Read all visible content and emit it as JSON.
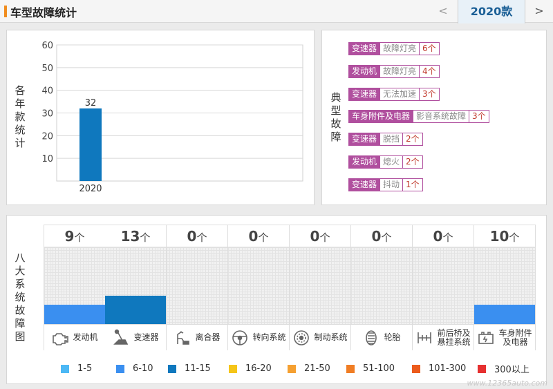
{
  "header": {
    "title": "车型故障统计",
    "prev_label": "<",
    "year_tab": "2020款",
    "next_label": ">"
  },
  "year_panel": {
    "side_label": [
      "各",
      "年",
      "款",
      "统",
      "计"
    ]
  },
  "chart_data": {
    "type": "bar",
    "categories": [
      "2020"
    ],
    "values": [
      32
    ],
    "ylim": [
      0,
      60
    ],
    "yticks": [
      10,
      20,
      30,
      40,
      50,
      60
    ],
    "grid": true,
    "bar_color": "#0f78be"
  },
  "typical_faults": {
    "side_label": [
      "典",
      "型",
      "故",
      "障"
    ],
    "items": [
      {
        "system": "变速器",
        "fault": "故障灯亮",
        "count": "6个"
      },
      {
        "system": "发动机",
        "fault": "故障灯亮",
        "count": "4个"
      },
      {
        "system": "变速器",
        "fault": "无法加速",
        "count": "3个"
      },
      {
        "system": "车身附件及电器",
        "fault": "影音系统故障",
        "count": "3个"
      },
      {
        "system": "变速器",
        "fault": "脱挡",
        "count": "2个"
      },
      {
        "system": "发动机",
        "fault": "熄火",
        "count": "2个"
      },
      {
        "system": "变速器",
        "fault": "抖动",
        "count": "1个"
      }
    ]
  },
  "systems_panel": {
    "side_label": [
      "八",
      "大",
      "系",
      "统",
      "故",
      "障",
      "图"
    ],
    "unit": "个",
    "systems": [
      {
        "name": "发动机",
        "count": "9",
        "level": 0.25,
        "color": "#3a8ff0",
        "icon": "engine-icon"
      },
      {
        "name": "变速器",
        "count": "13",
        "level": 0.37,
        "color": "#0f78be",
        "icon": "gearshift-icon"
      },
      {
        "name": "离合器",
        "count": "0",
        "level": 0,
        "color": "#3a8ff0",
        "icon": "clutch-icon"
      },
      {
        "name": "转向系统",
        "count": "0",
        "level": 0,
        "color": "#3a8ff0",
        "icon": "steering-wheel-icon"
      },
      {
        "name": "制动系统",
        "count": "0",
        "level": 0,
        "color": "#3a8ff0",
        "icon": "brake-disc-icon"
      },
      {
        "name": "轮胎",
        "count": "0",
        "level": 0,
        "color": "#3a8ff0",
        "icon": "tire-icon"
      },
      {
        "name": "前后桥及悬挂系统",
        "line1": "前后桥及",
        "line2": "悬挂系统",
        "count": "0",
        "level": 0,
        "color": "#3a8ff0",
        "icon": "axle-icon"
      },
      {
        "name": "车身附件及电器",
        "line1": "车身附件",
        "line2": "及电器",
        "count": "10",
        "level": 0.25,
        "color": "#3a8ff0",
        "icon": "battery-icon"
      }
    ]
  },
  "legend": [
    {
      "label": "1-5",
      "color": "#4cb8f5"
    },
    {
      "label": "6-10",
      "color": "#3a8ff0"
    },
    {
      "label": "11-15",
      "color": "#0f78be"
    },
    {
      "label": "16-20",
      "color": "#f5c518"
    },
    {
      "label": "21-50",
      "color": "#f5a031"
    },
    {
      "label": "51-100",
      "color": "#f07d24"
    },
    {
      "label": "101-300",
      "color": "#ec5b1c"
    },
    {
      "label": "300以上",
      "color": "#e63030"
    }
  ],
  "watermark": "www.12365auto.com"
}
